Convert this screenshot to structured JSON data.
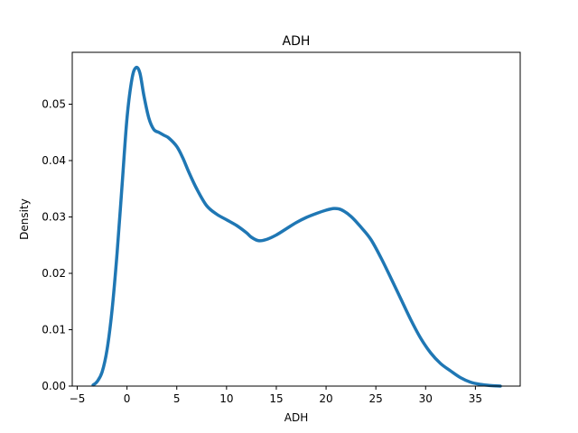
{
  "chart_data": {
    "type": "line",
    "title": "ADH",
    "xlabel": "ADH",
    "ylabel": "Density",
    "xlim": [
      -5.5,
      39.5
    ],
    "ylim": [
      0,
      0.0592
    ],
    "xticks": [
      -5,
      0,
      5,
      10,
      15,
      20,
      25,
      30,
      35
    ],
    "xtick_labels": [
      "−5",
      "0",
      "5",
      "10",
      "15",
      "20",
      "25",
      "30",
      "35"
    ],
    "yticks": [
      0.0,
      0.01,
      0.02,
      0.03,
      0.04,
      0.05
    ],
    "ytick_labels": [
      "0.00",
      "0.01",
      "0.02",
      "0.03",
      "0.04",
      "0.05"
    ],
    "grid": false,
    "legend": "none",
    "series": [
      {
        "color": "#1f77b4",
        "x": [
          -3.4,
          -3.0,
          -2.5,
          -2.0,
          -1.5,
          -1.0,
          -0.5,
          0.0,
          0.5,
          0.9,
          1.3,
          1.7,
          2.2,
          2.7,
          3.2,
          3.7,
          4.2,
          5.0,
          5.6,
          6.2,
          7.0,
          8.0,
          9.0,
          10.0,
          11.0,
          12.0,
          12.5,
          13.2,
          14.0,
          15.0,
          16.0,
          17.0,
          18.0,
          19.0,
          20.0,
          20.8,
          21.5,
          22.5,
          23.5,
          24.5,
          25.5,
          26.5,
          27.5,
          28.5,
          29.5,
          30.5,
          31.5,
          32.5,
          33.5,
          34.5,
          35.5,
          36.5,
          37.5
        ],
        "y": [
          0.0002,
          0.0008,
          0.0025,
          0.0065,
          0.0135,
          0.0235,
          0.0355,
          0.0475,
          0.0545,
          0.0565,
          0.0555,
          0.0515,
          0.0475,
          0.0455,
          0.045,
          0.0445,
          0.044,
          0.0425,
          0.0405,
          0.038,
          0.035,
          0.032,
          0.0305,
          0.0295,
          0.0285,
          0.0272,
          0.0264,
          0.0258,
          0.026,
          0.0268,
          0.0279,
          0.029,
          0.0299,
          0.0306,
          0.0312,
          0.0315,
          0.0313,
          0.0301,
          0.0282,
          0.026,
          0.0228,
          0.0192,
          0.0155,
          0.0118,
          0.0085,
          0.0059,
          0.004,
          0.0027,
          0.0015,
          0.0007,
          0.0003,
          0.0001,
          0.0
        ]
      }
    ]
  }
}
